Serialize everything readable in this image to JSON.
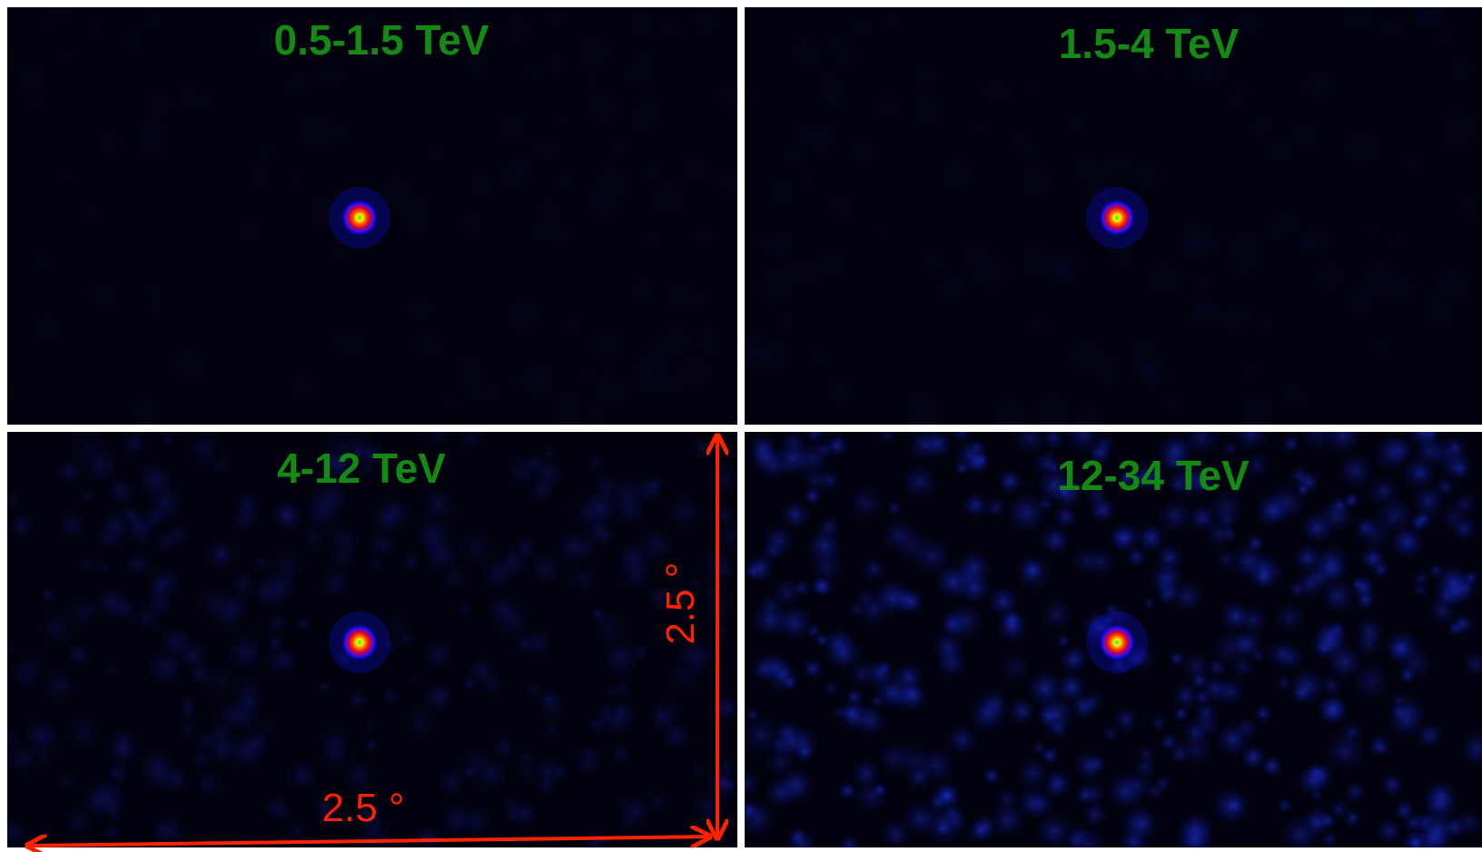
{
  "panels": [
    {
      "label": "0.5-1.5 TeV"
    },
    {
      "label": "1.5-4 TeV"
    },
    {
      "label": "4-12 TeV"
    },
    {
      "label": "12-34 TeV"
    }
  ],
  "scale_bar": {
    "horizontal_label": "2.5 °",
    "vertical_label": "2.5 °"
  }
}
